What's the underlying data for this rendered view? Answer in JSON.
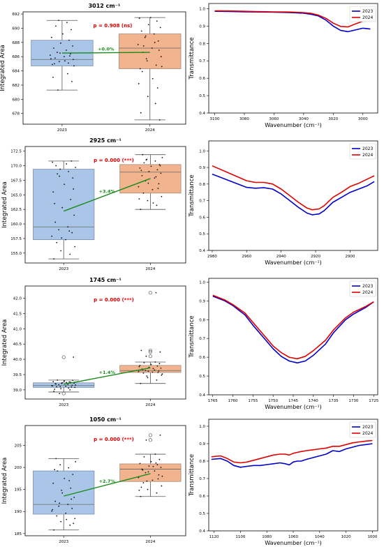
{
  "figure": {
    "colors": {
      "box2023": "#a9c6e8",
      "box2023_edge": "#7a8ea8",
      "box2024": "#f1b48e",
      "box2024_edge": "#a88a78",
      "trend": "#1a8a1a",
      "pval": "#e00000",
      "line2023": "#0000cc",
      "line2024": "#e00000"
    },
    "legend_labels": [
      "2023",
      "2024"
    ],
    "ylabel_box": "Integrated Area",
    "ylabel_spec": "Transmittance",
    "xlabel_spec": "Wavenumber (cm⁻¹)"
  },
  "chart_data": [
    {
      "type": "box",
      "title": "3012 cm⁻¹",
      "categories": [
        "2023",
        "2024"
      ],
      "ylabel": "Integrated Area",
      "ylim": [
        676.5,
        692.3
      ],
      "yticks": [
        678,
        680,
        682,
        684,
        686,
        688,
        690,
        692
      ],
      "boxes": [
        {
          "name": "2023",
          "whislo": 681.3,
          "q1": 684.7,
          "med": 685.6,
          "q3": 688.3,
          "whishi": 691.1,
          "fliers": []
        },
        {
          "name": "2024",
          "whislo": 677.1,
          "q1": 684.3,
          "med": 687.2,
          "q3": 689.2,
          "whishi": 691.5,
          "fliers": []
        }
      ],
      "points": [
        [
          684.9,
          685.1,
          685.3,
          685.6,
          685.8,
          686.0,
          686.2,
          686.4,
          686.6,
          686.9,
          687.2,
          687.5,
          687.9,
          688.3,
          688.7,
          689.2,
          689.8,
          690.3,
          690.8,
          691.1,
          684.7,
          685.0,
          685.4,
          685.7,
          686.1,
          686.5,
          683.6,
          683.1,
          682.5,
          681.3
        ],
        [
          684.3,
          684.8,
          685.4,
          686.0,
          686.6,
          687.2,
          687.7,
          688.2,
          688.7,
          689.2,
          689.6,
          690.1,
          690.5,
          691.0,
          691.4,
          691.5,
          686.9,
          687.5,
          688.0,
          685.7,
          684.6,
          683.9,
          682.9,
          682.2,
          681.6,
          680.4,
          679.4,
          678.1,
          677.1,
          688.9
        ]
      ],
      "means": [
        686.5,
        686.6
      ],
      "annotation_change": "+0.0%",
      "annotation_p": "p = 0.908 (ns)"
    },
    {
      "type": "line",
      "xlabel": "Wavenumber (cm⁻¹)",
      "ylabel": "Transmittance",
      "xlim": [
        3104,
        2990
      ],
      "xticks": [
        3100,
        3080,
        3060,
        3040,
        3020,
        3000
      ],
      "ylim": [
        0.4,
        1.03
      ],
      "yticks": [
        0.4,
        0.5,
        0.6,
        0.7,
        0.8,
        0.9,
        1.0
      ],
      "x": [
        3100,
        3090,
        3080,
        3070,
        3060,
        3050,
        3040,
        3035,
        3030,
        3025,
        3020,
        3015,
        3010,
        3005,
        3000,
        2995
      ],
      "series": [
        {
          "name": "2023",
          "values": [
            0.985,
            0.984,
            0.982,
            0.981,
            0.98,
            0.978,
            0.974,
            0.968,
            0.958,
            0.935,
            0.9,
            0.875,
            0.868,
            0.878,
            0.888,
            0.883
          ]
        },
        {
          "name": "2024",
          "values": [
            0.988,
            0.987,
            0.985,
            0.983,
            0.982,
            0.981,
            0.978,
            0.973,
            0.963,
            0.945,
            0.917,
            0.898,
            0.895,
            0.913,
            0.928,
            0.93
          ]
        }
      ],
      "legend": "top-right"
    },
    {
      "type": "box",
      "title": "2925 cm⁻¹",
      "categories": [
        "2023",
        "2024"
      ],
      "ylabel": "Integrated Area",
      "ylim": [
        153.3,
        173.3
      ],
      "yticks": [
        155.0,
        157.5,
        160.0,
        162.5,
        165.0,
        167.5,
        170.0,
        172.5
      ],
      "tick_decimals": 1,
      "boxes": [
        {
          "name": "2023",
          "whislo": 154.0,
          "q1": 157.3,
          "med": 159.5,
          "q3": 169.4,
          "whishi": 170.8,
          "fliers": []
        },
        {
          "name": "2024",
          "whislo": 162.5,
          "q1": 165.3,
          "med": 168.9,
          "q3": 170.2,
          "whishi": 171.9,
          "fliers": []
        }
      ],
      "points": [
        [
          154.0,
          154.8,
          155.4,
          156.1,
          156.8,
          157.3,
          157.9,
          158.5,
          159.0,
          159.5,
          160.3,
          161.5,
          162.8,
          164.2,
          165.5,
          166.8,
          167.9,
          168.6,
          169.0,
          169.4,
          169.7,
          170.0,
          170.3,
          170.6,
          170.8,
          157.6,
          158.8,
          163.5,
          166.0,
          168.2
        ],
        [
          162.5,
          163.2,
          164.0,
          164.7,
          165.3,
          165.9,
          166.4,
          166.9,
          167.4,
          167.9,
          168.3,
          168.7,
          169.0,
          169.3,
          169.6,
          169.9,
          170.2,
          170.5,
          170.8,
          171.1,
          171.4,
          171.9,
          163.6,
          164.3,
          166.1,
          167.0,
          168.1,
          169.2,
          170.0,
          171.0
        ]
      ],
      "means": [
        162.2,
        167.8
      ],
      "annotation_change": "+3.4%",
      "annotation_p": "p = 0.000 (***)"
    },
    {
      "type": "line",
      "xlabel": "Wavenumber (cm⁻¹)",
      "ylabel": "Transmittance",
      "xlim": [
        2982,
        2884
      ],
      "xticks": [
        2980,
        2960,
        2940,
        2920,
        2900
      ],
      "ylim": [
        0.4,
        1.06
      ],
      "yticks": [
        0.4,
        0.5,
        0.6,
        0.7,
        0.8,
        0.9,
        1.0
      ],
      "x": [
        2980,
        2970,
        2960,
        2955,
        2950,
        2945,
        2940,
        2935,
        2930,
        2925,
        2922,
        2918,
        2915,
        2910,
        2905,
        2900,
        2895,
        2890,
        2886
      ],
      "series": [
        {
          "name": "2023",
          "values": [
            0.86,
            0.82,
            0.78,
            0.775,
            0.778,
            0.77,
            0.74,
            0.7,
            0.66,
            0.625,
            0.615,
            0.62,
            0.64,
            0.69,
            0.72,
            0.75,
            0.77,
            0.79,
            0.815
          ]
        },
        {
          "name": "2024",
          "values": [
            0.91,
            0.865,
            0.82,
            0.81,
            0.81,
            0.8,
            0.77,
            0.73,
            0.69,
            0.655,
            0.645,
            0.65,
            0.67,
            0.72,
            0.75,
            0.785,
            0.805,
            0.83,
            0.85
          ]
        }
      ],
      "legend": "top-right"
    },
    {
      "type": "box",
      "title": "1745 cm⁻¹",
      "categories": [
        "2023",
        "2024"
      ],
      "ylabel": "Integrated Area",
      "ylim": [
        38.7,
        42.4
      ],
      "yticks": [
        39.0,
        39.5,
        40.0,
        40.5,
        41.0,
        41.5,
        42.0
      ],
      "tick_decimals": 1,
      "boxes": [
        {
          "name": "2023",
          "whislo": 38.93,
          "q1": 39.08,
          "med": 39.14,
          "q3": 39.23,
          "whishi": 39.32,
          "fliers": [
            40.07,
            38.88
          ]
        },
        {
          "name": "2024",
          "whislo": 39.21,
          "q1": 39.57,
          "med": 39.63,
          "q3": 39.8,
          "whishi": 39.91,
          "fliers": [
            42.18,
            40.29,
            40.24,
            40.1
          ]
        }
      ],
      "points": [
        [
          38.95,
          39.0,
          39.04,
          39.08,
          39.1,
          39.12,
          39.14,
          39.15,
          39.17,
          39.18,
          39.2,
          39.22,
          39.23,
          39.25,
          39.27,
          39.29,
          39.31,
          39.32,
          39.06,
          39.11,
          39.16,
          39.19,
          39.24,
          39.13,
          39.09,
          39.21,
          39.26,
          39.02,
          40.07,
          38.88
        ],
        [
          39.21,
          39.32,
          39.4,
          39.48,
          39.55,
          39.58,
          39.6,
          39.62,
          39.63,
          39.65,
          39.68,
          39.71,
          39.74,
          39.78,
          39.8,
          39.83,
          39.86,
          39.89,
          39.91,
          39.45,
          39.52,
          39.66,
          39.7,
          39.76,
          39.57,
          39.61,
          42.18,
          40.29,
          40.24,
          40.1
        ]
      ],
      "means": [
        39.18,
        39.72
      ],
      "annotation_change": "+1.4%",
      "annotation_p": "p = 0.000 (***)"
    },
    {
      "type": "line",
      "xlabel": "Wavenumber (cm⁻¹)",
      "ylabel": "Transmittance",
      "xlim": [
        1766,
        1724
      ],
      "xticks": [
        1765,
        1760,
        1755,
        1750,
        1745,
        1740,
        1735,
        1730,
        1725
      ],
      "ylim": [
        0.4,
        1.02
      ],
      "yticks": [
        0.4,
        0.5,
        0.6,
        0.7,
        0.8,
        0.9,
        1.0
      ],
      "x": [
        1765,
        1762,
        1760,
        1757,
        1755,
        1752,
        1750,
        1748,
        1746,
        1744,
        1742,
        1740,
        1737,
        1735,
        1732,
        1730,
        1727,
        1725
      ],
      "series": [
        {
          "name": "2023",
          "values": [
            0.925,
            0.9,
            0.875,
            0.825,
            0.77,
            0.695,
            0.645,
            0.605,
            0.58,
            0.57,
            0.58,
            0.61,
            0.67,
            0.73,
            0.8,
            0.83,
            0.865,
            0.895
          ]
        },
        {
          "name": "2024",
          "values": [
            0.93,
            0.905,
            0.88,
            0.835,
            0.785,
            0.71,
            0.66,
            0.625,
            0.6,
            0.592,
            0.605,
            0.635,
            0.69,
            0.745,
            0.81,
            0.84,
            0.87,
            0.895
          ]
        }
      ],
      "legend": "top-right"
    },
    {
      "type": "box",
      "title": "1050 cm⁻¹",
      "categories": [
        "2023",
        "2024"
      ],
      "ylabel": "Integrated Area",
      "ylim": [
        184.5,
        209.5
      ],
      "yticks": [
        185,
        190,
        195,
        200,
        205
      ],
      "boxes": [
        {
          "name": "2023",
          "whislo": 185.8,
          "q1": 189.4,
          "med": 191.6,
          "q3": 199.2,
          "whishi": 202.0,
          "fliers": []
        },
        {
          "name": "2024",
          "whislo": 193.4,
          "q1": 196.8,
          "med": 199.6,
          "q3": 200.8,
          "whishi": 203.0,
          "fliers": [
            207.3,
            206.2
          ]
        }
      ],
      "points": [
        [
          185.8,
          186.9,
          187.7,
          188.4,
          189.0,
          189.6,
          190.1,
          190.7,
          191.2,
          191.6,
          192.3,
          193.2,
          194.2,
          195.3,
          196.4,
          197.5,
          198.4,
          199.2,
          199.9,
          200.6,
          201.3,
          202.0,
          188.2,
          190.4,
          192.8,
          194.8,
          197.0,
          199.5,
          187.3,
          191.9
        ],
        [
          193.4,
          194.2,
          195.0,
          195.8,
          196.5,
          197.1,
          197.7,
          198.3,
          198.8,
          199.2,
          199.6,
          200.0,
          200.3,
          200.6,
          200.9,
          201.3,
          201.8,
          202.4,
          203.0,
          196.9,
          198.0,
          199.4,
          200.2,
          194.8,
          197.4,
          199.0,
          201.0,
          195.5,
          207.3,
          206.2
        ]
      ],
      "means": [
        193.5,
        198.6
      ],
      "annotation_change": "+2.7%",
      "annotation_p": "p = 0.000 (***)"
    },
    {
      "type": "line",
      "xlabel": "Wavenumber (cm⁻¹)",
      "ylabel": "Transmittance",
      "xlim": [
        1124,
        996
      ],
      "xticks": [
        1120,
        1100,
        1080,
        1060,
        1040,
        1020,
        1000
      ],
      "ylim": [
        0.4,
        1.04
      ],
      "yticks": [
        0.4,
        0.5,
        0.6,
        0.7,
        0.8,
        0.9,
        1.0
      ],
      "x": [
        1122,
        1115,
        1110,
        1105,
        1100,
        1095,
        1090,
        1085,
        1080,
        1075,
        1070,
        1066,
        1063,
        1060,
        1057,
        1054,
        1050,
        1045,
        1040,
        1035,
        1030,
        1025,
        1020,
        1015,
        1010,
        1005,
        1000
      ],
      "series": [
        {
          "name": "2023",
          "values": [
            0.81,
            0.815,
            0.8,
            0.775,
            0.765,
            0.77,
            0.775,
            0.775,
            0.78,
            0.785,
            0.79,
            0.785,
            0.778,
            0.795,
            0.8,
            0.8,
            0.81,
            0.82,
            0.83,
            0.84,
            0.86,
            0.855,
            0.87,
            0.88,
            0.89,
            0.895,
            0.9
          ]
        },
        {
          "name": "2024",
          "values": [
            0.825,
            0.83,
            0.815,
            0.795,
            0.79,
            0.795,
            0.805,
            0.815,
            0.825,
            0.835,
            0.84,
            0.84,
            0.835,
            0.845,
            0.85,
            0.855,
            0.86,
            0.865,
            0.87,
            0.875,
            0.885,
            0.885,
            0.895,
            0.905,
            0.91,
            0.915,
            0.918
          ]
        }
      ],
      "legend": "top-right"
    }
  ]
}
